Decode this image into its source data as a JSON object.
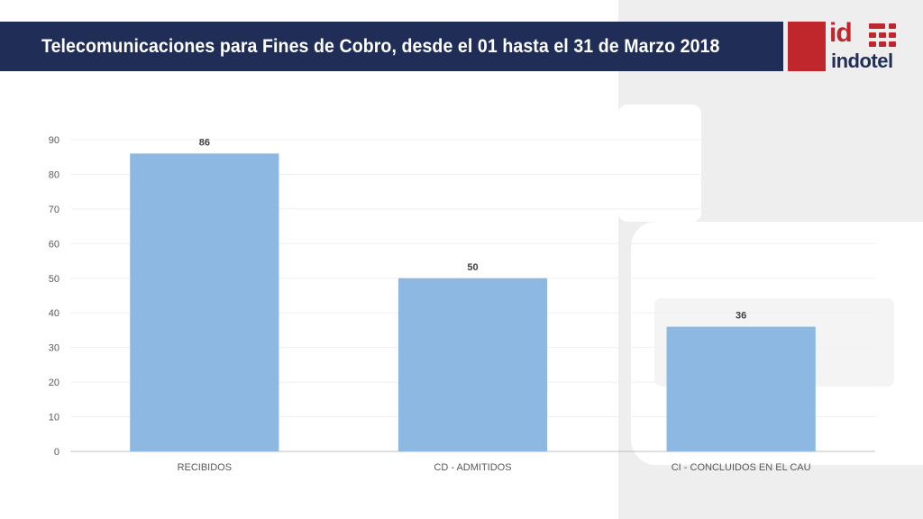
{
  "header": {
    "title": "Telecomunicaciones para Fines de Cobro, desde el 01 hasta el 31 de Marzo 2018"
  },
  "logo": {
    "mark": "id",
    "word": "indotel",
    "colors": {
      "red": "#c0272d",
      "navy": "#1f2d57"
    }
  },
  "chart_data": {
    "type": "bar",
    "categories": [
      "RECIBIDOS",
      "CD - ADMITIDOS",
      "CI - CONCLUIDOS EN EL CAU"
    ],
    "values": [
      86,
      50,
      36
    ],
    "data_labels": [
      "86",
      "50",
      "36"
    ],
    "ylim": [
      0,
      90
    ],
    "yticks": [
      0,
      10,
      20,
      30,
      40,
      50,
      60,
      70,
      80,
      90
    ],
    "grid": true,
    "legend": "none",
    "bar_color": "#8db8e2"
  }
}
